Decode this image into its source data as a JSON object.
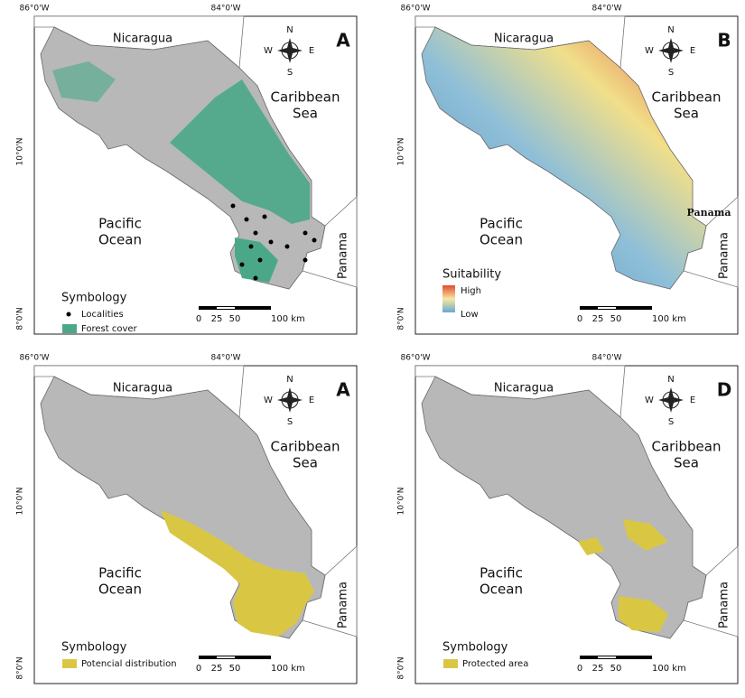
{
  "panels": [
    {
      "letter": "A",
      "lon_labels": [
        "86°0'W",
        "84°0'W"
      ],
      "lat_labels": [
        "10°0'N",
        "8°0'N"
      ],
      "places": {
        "nicaragua": "Nicaragua",
        "caribbean": [
          "Caribbean",
          "Sea"
        ],
        "pacific": [
          "Pacific",
          "Ocean"
        ],
        "panama": "Panama"
      },
      "compass": [
        "N",
        "S",
        "E",
        "W"
      ],
      "scale": [
        "0",
        "25",
        "50",
        "100 km"
      ],
      "legend": {
        "title": "Symbology",
        "items": [
          "Localities",
          "Forest cover"
        ]
      }
    },
    {
      "letter": "B",
      "lon_labels": [
        "86°0'W",
        "84°0'W"
      ],
      "lat_labels": [
        "10°0'N",
        "8°0'N"
      ],
      "places": {
        "nicaragua": "Nicaragua",
        "caribbean": [
          "Caribbean",
          "Sea"
        ],
        "pacific": [
          "Pacific",
          "Ocean"
        ],
        "panama": "Panama"
      },
      "compass": [
        "N",
        "S",
        "E",
        "W"
      ],
      "scale": [
        "0",
        "25",
        "50",
        "100 km"
      ],
      "legend": {
        "title": "Suitability",
        "items": [
          "High",
          "Low"
        ]
      },
      "inner_label": "Panama"
    },
    {
      "letter": "A",
      "lon_labels": [
        "86°0'W",
        "84°0'W"
      ],
      "lat_labels": [
        "10°0'N",
        "8°0'N"
      ],
      "places": {
        "nicaragua": "Nicaragua",
        "caribbean": [
          "Caribbean",
          "Sea"
        ],
        "pacific": [
          "Pacific",
          "Ocean"
        ],
        "panama": "Panama"
      },
      "compass": [
        "N",
        "S",
        "E",
        "W"
      ],
      "scale": [
        "0",
        "25",
        "50",
        "100 km"
      ],
      "legend": {
        "title": "Symbology",
        "items": [
          "Potencial distribution"
        ]
      }
    },
    {
      "letter": "D",
      "lon_labels": [
        "86°0'W",
        "84°0'W"
      ],
      "lat_labels": [
        "10°0'N",
        "8°0'N"
      ],
      "places": {
        "nicaragua": "Nicaragua",
        "caribbean": [
          "Caribbean",
          "Sea"
        ],
        "pacific": [
          "Pacific",
          "Ocean"
        ],
        "panama": "Panama"
      },
      "compass": [
        "N",
        "S",
        "E",
        "W"
      ],
      "scale": [
        "0",
        "25",
        "50",
        "100 km"
      ],
      "legend": {
        "title": "Symbology",
        "items": [
          "Protected area"
        ]
      }
    }
  ]
}
